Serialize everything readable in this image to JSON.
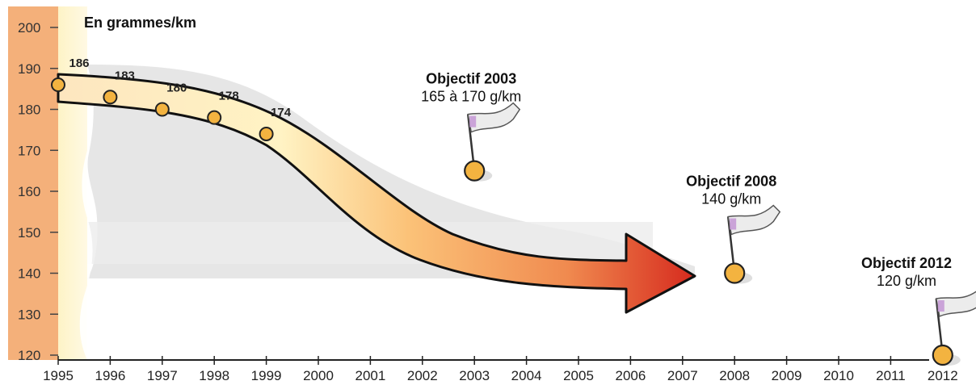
{
  "chart_data": {
    "type": "line",
    "ylabel": "En grammes/km",
    "ylim": [
      120,
      200
    ],
    "yticks": [
      "200",
      "190",
      "180",
      "170",
      "160",
      "150",
      "140",
      "130",
      "120"
    ],
    "x": [
      "1995",
      "1996",
      "1997",
      "1998",
      "1999",
      "2000",
      "2001",
      "2002",
      "2003",
      "2004",
      "2005",
      "2006",
      "2007",
      "2008",
      "2009",
      "2010",
      "2011",
      "2012"
    ],
    "series": [
      {
        "x": [
          "1995",
          "1996",
          "1997",
          "1998",
          "1999"
        ],
        "values": [
          186,
          183,
          180,
          178,
          174
        ]
      }
    ],
    "data_labels": [
      "186",
      "183",
      "180",
      "178",
      "174"
    ],
    "targets": [
      {
        "year": "2003",
        "value": 165,
        "title": "Objectif 2003",
        "subtitle": "165 à 170 g/km"
      },
      {
        "year": "2008",
        "value": 140,
        "title": "Objectif 2008",
        "subtitle": "140 g/km"
      },
      {
        "year": "2012",
        "value": 120,
        "title": "Objectif 2012",
        "subtitle": "120 g/km"
      }
    ],
    "colors": {
      "axis_band": "#f4b07a",
      "band_light": "#fdf3c6",
      "shadow": "#dcdcdc",
      "arrow_start": "#fde2b8",
      "arrow_end": "#d62a1e",
      "marker": "#f3b340",
      "flag": "#ececec",
      "flag_accent": "#c79bd6"
    }
  }
}
